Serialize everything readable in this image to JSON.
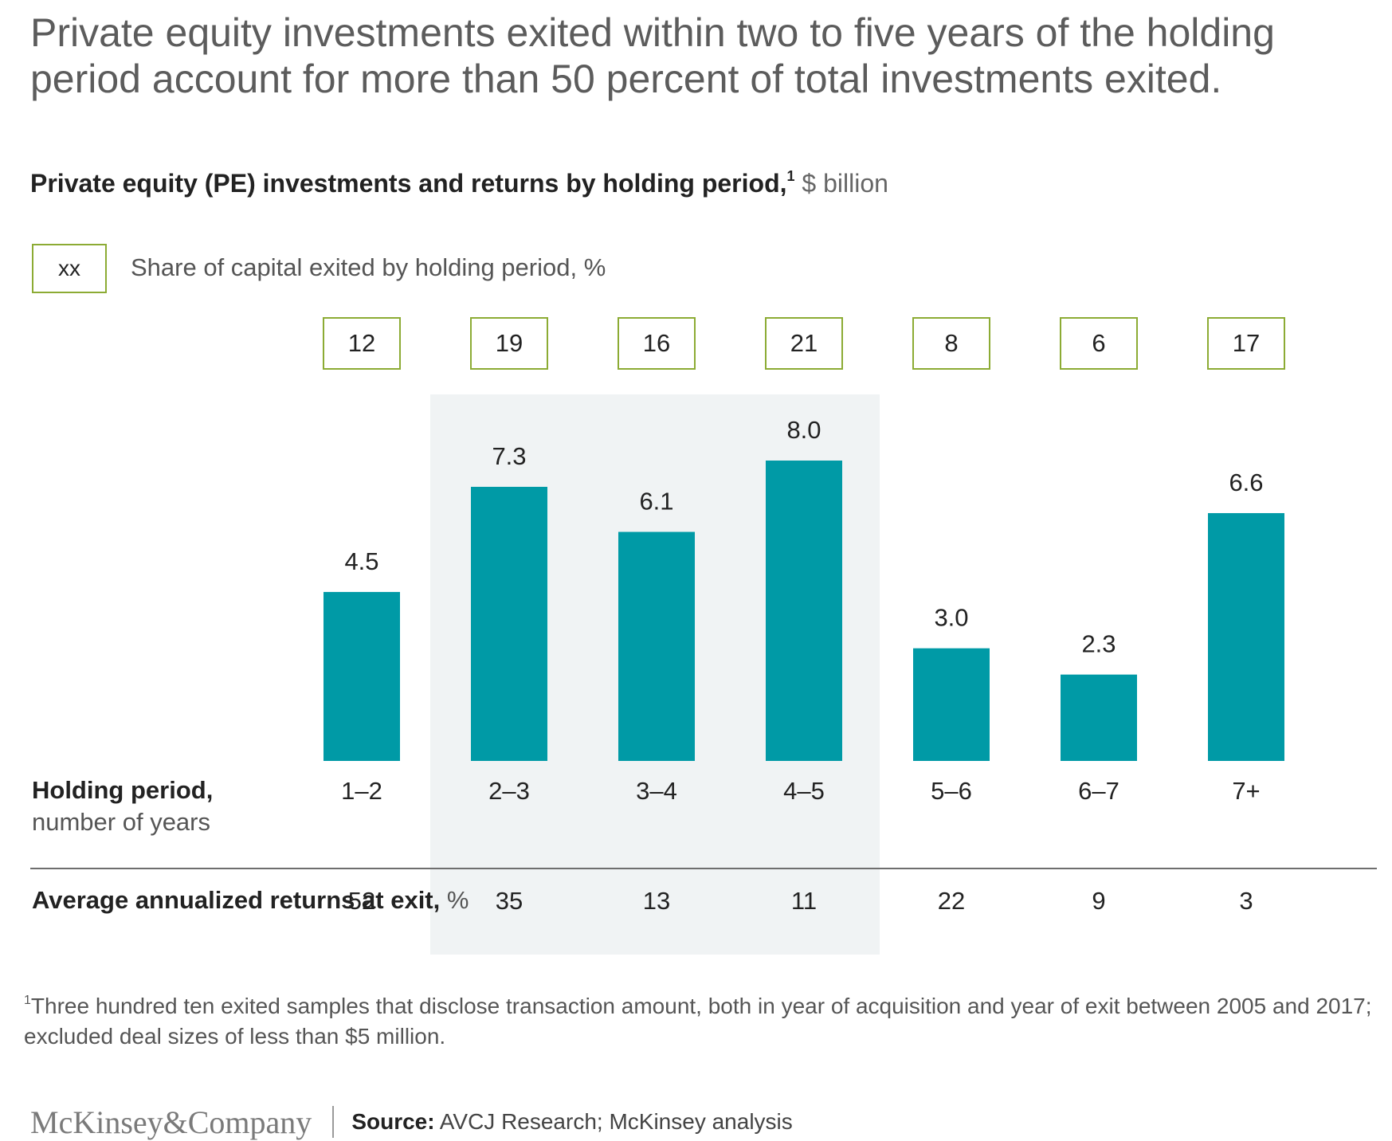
{
  "headline": "Private equity investments exited within two to five years of the holding period account for more than 50 percent of total investments exited.",
  "subtitle": {
    "main": "Private equity (PE) investments and returns by holding period,",
    "footnote_marker": "1",
    "unit": " $ billion"
  },
  "legend": {
    "box_text": "xx",
    "label": "Share of capital exited by holding period, %"
  },
  "rows": {
    "holding_period": {
      "title": "Holding period,",
      "subtitle": "number of years"
    },
    "returns": {
      "title": "Average annualized returns at exit,",
      "unit": " %"
    }
  },
  "chart_data": {
    "type": "bar",
    "title": "Private equity (PE) investments and returns by holding period",
    "ylabel": "$ billion",
    "categories": [
      "1–2",
      "2–3",
      "3–4",
      "4–5",
      "5–6",
      "6–7",
      "7+"
    ],
    "values": [
      4.5,
      7.3,
      6.1,
      8.0,
      3.0,
      2.3,
      6.6
    ],
    "value_labels": [
      "4.5",
      "7.3",
      "6.1",
      "8.0",
      "3.0",
      "2.3",
      "6.6"
    ],
    "share_of_capital_exited_pct": [
      "12",
      "19",
      "16",
      "21",
      "8",
      "6",
      "17"
    ],
    "avg_annualized_returns_pct": [
      "52",
      "35",
      "13",
      "11",
      "22",
      "9",
      "3"
    ],
    "highlighted_categories": [
      "2–3",
      "3–4",
      "4–5"
    ],
    "ylim": [
      0,
      8.0
    ],
    "bar_color": "#009aa6",
    "box_color": "#8cab34",
    "highlight_color": "#f0f3f4",
    "grid": false,
    "legend": false
  },
  "footnote": {
    "marker": "1",
    "text": "Three hundred ten exited samples that disclose transaction amount, both in year of acquisition and year of exit between 2005 and 2017; excluded deal sizes of less than $5 million."
  },
  "footer": {
    "logo": "McKinsey&Company",
    "source_label": "Source:",
    "source_text": " AVCJ Research; McKinsey analysis"
  }
}
